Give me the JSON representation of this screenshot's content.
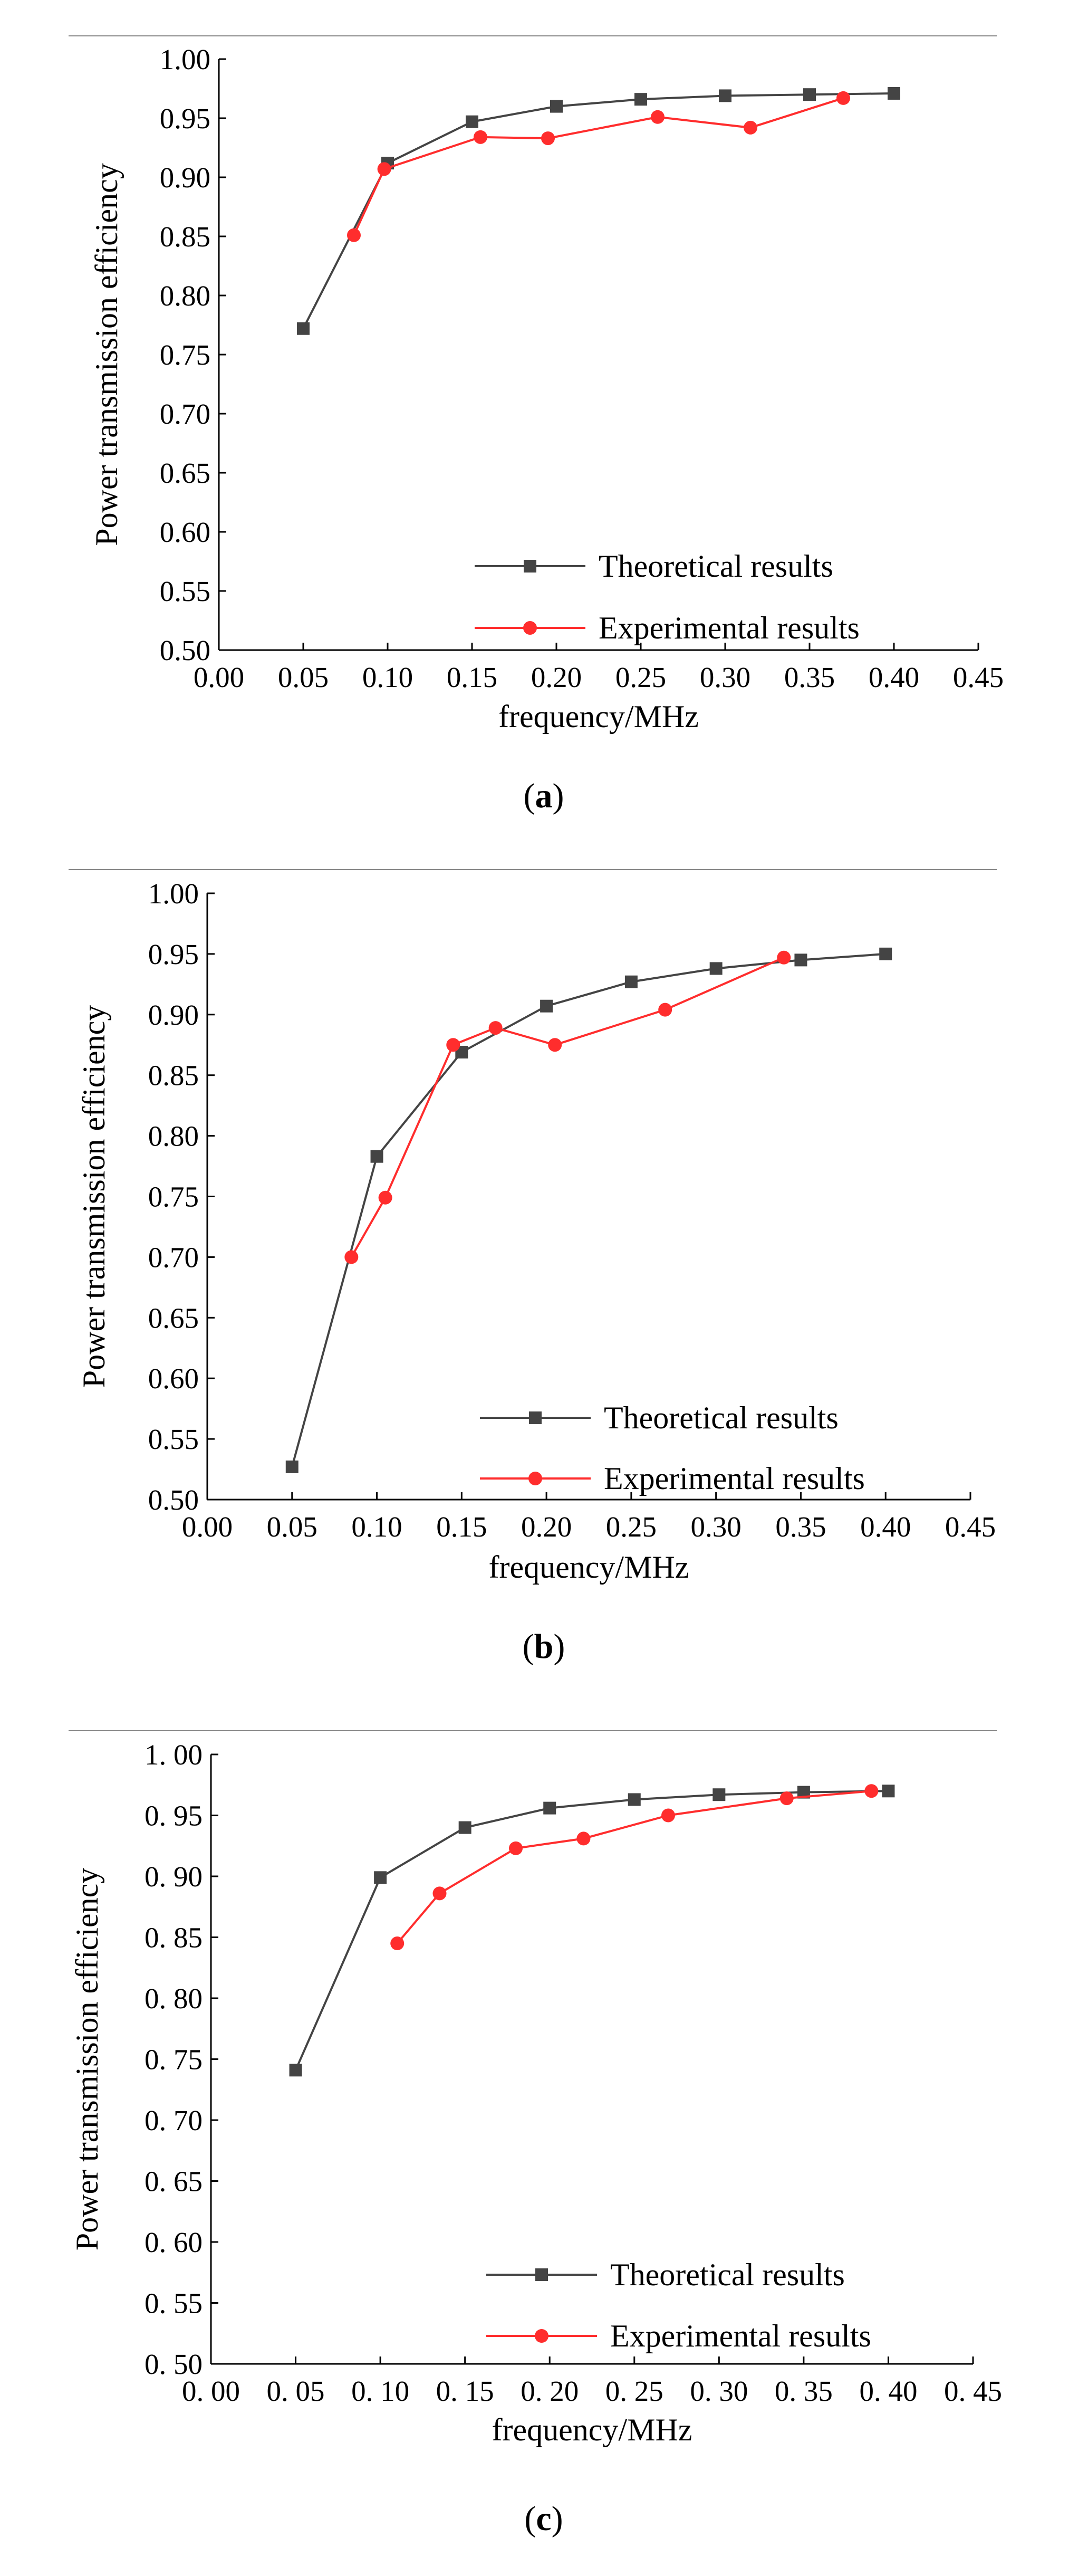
{
  "figure": {
    "panels": [
      {
        "caption_open": "(",
        "caption_letter": "a",
        "caption_close": ")"
      },
      {
        "caption_open": "(",
        "caption_letter": "b",
        "caption_close": ")"
      },
      {
        "caption_open": "(",
        "caption_letter": "c",
        "caption_close": ")"
      }
    ]
  },
  "colors": {
    "theoretical": "#444444",
    "experimental": "#ff2d2d",
    "axis": "#000000",
    "rule": "#888888"
  },
  "chart_data": [
    {
      "type": "line",
      "xlabel": "frequency/MHz",
      "ylabel": "Power transmission efficiency",
      "xlim": [
        0.0,
        0.45
      ],
      "ylim": [
        0.5,
        1.0
      ],
      "x_ticks": [
        "0.00",
        "0.05",
        "0.10",
        "0.15",
        "0.20",
        "0.25",
        "0.30",
        "0.35",
        "0.40",
        "0.45"
      ],
      "y_ticks": [
        "0.50",
        "0.55",
        "0.60",
        "0.65",
        "0.70",
        "0.75",
        "0.80",
        "0.85",
        "0.90",
        "0.95",
        "1.00"
      ],
      "grid": false,
      "legend_position": "bottom-right",
      "series": [
        {
          "name": "Theoretical results",
          "marker": "square",
          "x": [
            0.05,
            0.1,
            0.15,
            0.2,
            0.25,
            0.3,
            0.35,
            0.4
          ],
          "y": [
            0.772,
            0.912,
            0.947,
            0.96,
            0.966,
            0.969,
            0.97,
            0.971
          ]
        },
        {
          "name": "Experimental results",
          "marker": "circle",
          "x": [
            0.08,
            0.098,
            0.155,
            0.195,
            0.26,
            0.315,
            0.37
          ],
          "y": [
            0.851,
            0.907,
            0.934,
            0.933,
            0.951,
            0.942,
            0.967
          ]
        }
      ]
    },
    {
      "type": "line",
      "xlabel": "frequency/MHz",
      "ylabel": "Power transmission efficiency",
      "xlim": [
        0.0,
        0.45
      ],
      "ylim": [
        0.5,
        1.0
      ],
      "x_ticks": [
        "0.00",
        "0.05",
        "0.10",
        "0.15",
        "0.20",
        "0.25",
        "0.30",
        "0.35",
        "0.40",
        "0.45"
      ],
      "y_ticks": [
        "0.50",
        "0.55",
        "0.60",
        "0.65",
        "0.70",
        "0.75",
        "0.80",
        "0.85",
        "0.90",
        "0.95",
        "1.00"
      ],
      "grid": false,
      "legend_position": "bottom-right",
      "series": [
        {
          "name": "Theoretical results",
          "marker": "square",
          "x": [
            0.05,
            0.1,
            0.15,
            0.2,
            0.25,
            0.3,
            0.35,
            0.4
          ],
          "y": [
            0.527,
            0.783,
            0.869,
            0.907,
            0.927,
            0.938,
            0.945,
            0.95
          ]
        },
        {
          "name": "Experimental results",
          "marker": "circle",
          "x": [
            0.085,
            0.105,
            0.145,
            0.17,
            0.205,
            0.27,
            0.34
          ],
          "y": [
            0.7,
            0.749,
            0.875,
            0.889,
            0.875,
            0.904,
            0.947
          ]
        }
      ]
    },
    {
      "type": "line",
      "xlabel": "frequency/MHz",
      "ylabel": "Power transmission efficiency",
      "xlim": [
        0.0,
        0.45
      ],
      "ylim": [
        0.5,
        1.0
      ],
      "x_ticks": [
        "0. 00",
        "0. 05",
        "0. 10",
        "0. 15",
        "0. 20",
        "0. 25",
        "0. 30",
        "0. 35",
        "0. 40",
        "0. 45"
      ],
      "y_ticks": [
        "0. 50",
        "0. 55",
        "0. 60",
        "0. 65",
        "0. 70",
        "0. 75",
        "0. 80",
        "0. 85",
        "0. 90",
        "0. 95",
        "1. 00"
      ],
      "grid": false,
      "legend_position": "bottom-right",
      "series": [
        {
          "name": "Theoretical results",
          "marker": "square",
          "x": [
            0.05,
            0.1,
            0.15,
            0.2,
            0.25,
            0.3,
            0.35,
            0.4
          ],
          "y": [
            0.741,
            0.899,
            0.94,
            0.956,
            0.963,
            0.967,
            0.969,
            0.97
          ]
        },
        {
          "name": "Experimental results",
          "marker": "circle",
          "x": [
            0.11,
            0.135,
            0.18,
            0.22,
            0.27,
            0.34,
            0.39
          ],
          "y": [
            0.845,
            0.886,
            0.923,
            0.931,
            0.95,
            0.964,
            0.97
          ]
        }
      ]
    }
  ]
}
